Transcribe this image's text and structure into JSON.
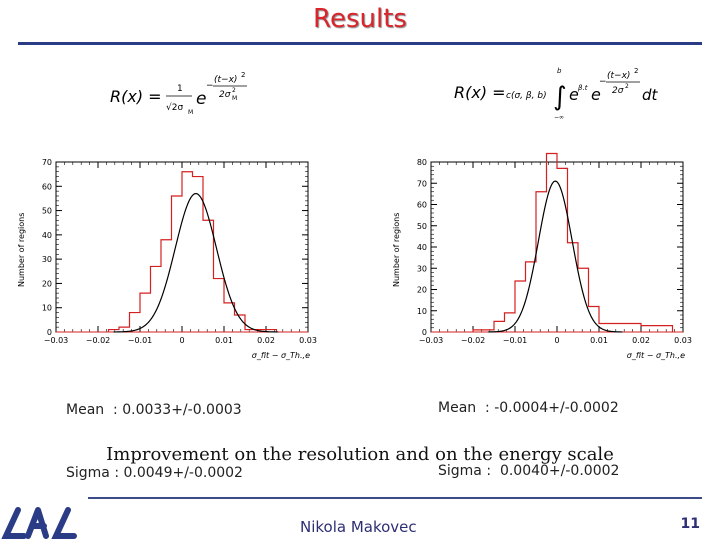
{
  "slide": {
    "title": "Results",
    "caption": "Improvement on the resolution and on the energy scale",
    "author": "Nikola Makovec",
    "page_number": "11",
    "logo_text": "LAL"
  },
  "formulas": {
    "left": {
      "lhs": "R(x) =",
      "numerator": "1",
      "denominator": "√2σ",
      "denominator_sub": "M",
      "base": "e",
      "exp_minus": "−",
      "exp_numerator": "(t−x)",
      "exp_power": "2",
      "exp_denominator": "2σ",
      "exp_denominator_sup": "2",
      "exp_denominator_sub": "M"
    },
    "right": {
      "lhs": "R(x) =",
      "prefactor": "c(σ, β, b)",
      "integral_upper": "b",
      "integral_lower": "−∞",
      "e1": "e",
      "e1_exp": "β.t",
      "e2": "e",
      "exp_minus": "−",
      "exp_numerator": "(t−x)",
      "exp_power": "2",
      "exp_denominator": "2σ",
      "exp_denominator_sup": "2",
      "dt": "dt"
    }
  },
  "stats": {
    "left": {
      "mean_line": "Mean  : 0.0033+/-0.0003",
      "sigma_line": "Sigma : 0.0049+/-0.0002"
    },
    "right": {
      "mean_line": "Mean  : -0.0004+/-0.0002",
      "sigma_line": "Sigma :  0.0040+/-0.0002"
    }
  },
  "colors": {
    "title": "#d9262d",
    "rule": "#2b3c86",
    "histogram": "#d42020",
    "fit": "#000000",
    "logo": "#2b3c86"
  },
  "chart_data": [
    {
      "type": "histogram",
      "ylabel": "Number of regions",
      "xlabel": "σ_fit − σ_Th.,e",
      "xlim": [
        -0.03,
        0.03
      ],
      "ylim": [
        0,
        70
      ],
      "xticks": [
        "−0.03",
        "−0.02",
        "−0.01",
        "0",
        "0.01",
        "0.02",
        "0.03"
      ],
      "yticks": [
        "0",
        "10",
        "20",
        "30",
        "40",
        "50",
        "60",
        "70"
      ],
      "bin_edges": [
        -0.0175,
        -0.015,
        -0.0125,
        -0.01,
        -0.0075,
        -0.005,
        -0.0025,
        0.0,
        0.0025,
        0.005,
        0.0075,
        0.01,
        0.0125,
        0.015,
        0.0175,
        0.02,
        0.0225
      ],
      "counts": [
        1,
        2,
        8,
        16,
        27,
        38,
        56,
        66,
        64,
        46,
        22,
        12,
        7,
        1,
        1,
        1
      ],
      "fit": {
        "type": "gaussian",
        "mean": 0.0033,
        "sigma": 0.0049,
        "amplitude": 57
      },
      "stats": {
        "mean": "0.0033+/-0.0003",
        "sigma": "0.0049+/-0.0002"
      }
    },
    {
      "type": "histogram",
      "ylabel": "Number of regions",
      "xlabel": "σ_fit − σ_Th.,e",
      "xlim": [
        -0.03,
        0.03
      ],
      "ylim": [
        0,
        80
      ],
      "xticks": [
        "−0.03",
        "−0.02",
        "−0.01",
        "0",
        "0.01",
        "0.02",
        "0.03"
      ],
      "yticks": [
        "0",
        "10",
        "20",
        "30",
        "40",
        "50",
        "60",
        "70",
        "80"
      ],
      "bin_edges": [
        -0.02,
        -0.0175,
        -0.015,
        -0.0125,
        -0.01,
        -0.0075,
        -0.005,
        -0.0025,
        0.0,
        0.0025,
        0.005,
        0.0075,
        0.01,
        0.0125,
        0.015,
        0.02,
        0.0225,
        0.0275
      ],
      "counts": [
        1,
        1,
        5,
        9,
        24,
        33,
        66,
        84,
        77,
        42,
        30,
        12,
        4,
        4,
        4,
        3,
        3
      ],
      "fit": {
        "type": "gaussian",
        "mean": -0.0004,
        "sigma": 0.004,
        "amplitude": 71
      },
      "stats": {
        "mean": "-0.0004+/-0.0002",
        "sigma": "0.0040+/-0.0002"
      }
    }
  ]
}
